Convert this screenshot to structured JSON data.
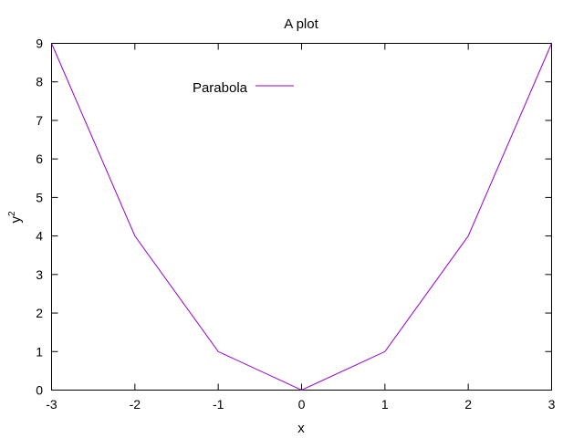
{
  "chart_data": {
    "type": "line",
    "title": "A plot",
    "xlabel": "x",
    "ylabel": {
      "base": "y",
      "superscript": "2"
    },
    "xlim": [
      -3,
      3
    ],
    "ylim": [
      0,
      9
    ],
    "xticks": [
      -3,
      -2,
      -1,
      0,
      1,
      2,
      3
    ],
    "yticks": [
      0,
      1,
      2,
      3,
      4,
      5,
      6,
      7,
      8,
      9
    ],
    "grid": false,
    "legend_position": "top-left",
    "series": [
      {
        "name": "Parabola",
        "color": "#9400d3",
        "x": [
          -3,
          -2,
          -1,
          0,
          1,
          2,
          3
        ],
        "y": [
          9,
          4,
          1,
          0,
          1,
          4,
          9
        ]
      }
    ]
  }
}
